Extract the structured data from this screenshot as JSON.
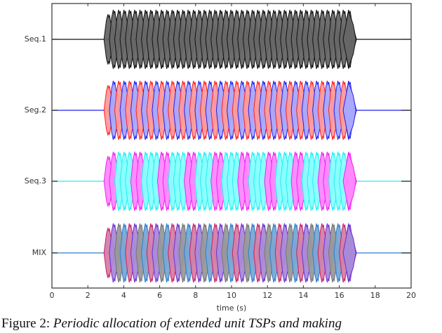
{
  "chart_data": {
    "type": "line",
    "title": "",
    "xlabel": "time (s)",
    "ylabel": "",
    "xlim": [
      0,
      20
    ],
    "xticks": [
      0,
      2,
      4,
      6,
      8,
      10,
      12,
      14,
      16,
      18,
      20
    ],
    "grid": false,
    "description": "Stacked waveform plot of periodic extended unit TSP pulses; each track shows pulse bursts between ~2.9 s and ~16.6 s with ~0.3 s pulse period.",
    "series": [
      {
        "name": "Seq.1",
        "colors": [
          "#666666"
        ],
        "edge_colors": [
          "#111111"
        ],
        "pattern": "all gray",
        "start_s": 2.9,
        "end_s": 16.6,
        "period_s": 0.3
      },
      {
        "name": "Seg.2",
        "colors": [
          "#ff9a9a",
          "#a8a8ff"
        ],
        "edge_colors": [
          "#ff2020",
          "#2020ee"
        ],
        "pattern": "alternating red, blue",
        "start_s": 2.9,
        "end_s": 16.6,
        "period_s": 0.3
      },
      {
        "name": "Seq.3",
        "colors": [
          "#ff88ff",
          "#88ffff"
        ],
        "edge_colors": [
          "#ee22ee",
          "#22eeee"
        ],
        "pattern": "2 magenta, 3 cyan repeating",
        "start_s": 2.9,
        "end_s": 16.6,
        "period_s": 0.3
      },
      {
        "name": "MIX",
        "colors": [
          "#d47fa6",
          "#a98ad8",
          "#999999",
          "#7aa6d4"
        ],
        "edge_colors": [
          "#cc1f66",
          "#6a2fd6",
          "#777777",
          "#2a7fd0"
        ],
        "pattern": "crimson, purple, gray, blue repeating",
        "start_s": 2.9,
        "end_s": 16.6,
        "period_s": 0.3
      }
    ]
  },
  "axis": {
    "ylabels": [
      "Seq.1",
      "Seg.2",
      "Seq.3",
      "MIX"
    ],
    "xticks": [
      "0",
      "2",
      "4",
      "6",
      "8",
      "10",
      "12",
      "14",
      "16",
      "18",
      "20"
    ],
    "xlabel": "time (s)"
  },
  "caption": {
    "prefix": "Figure 2: ",
    "text": "Periodic allocation of extended unit TSPs and making"
  }
}
